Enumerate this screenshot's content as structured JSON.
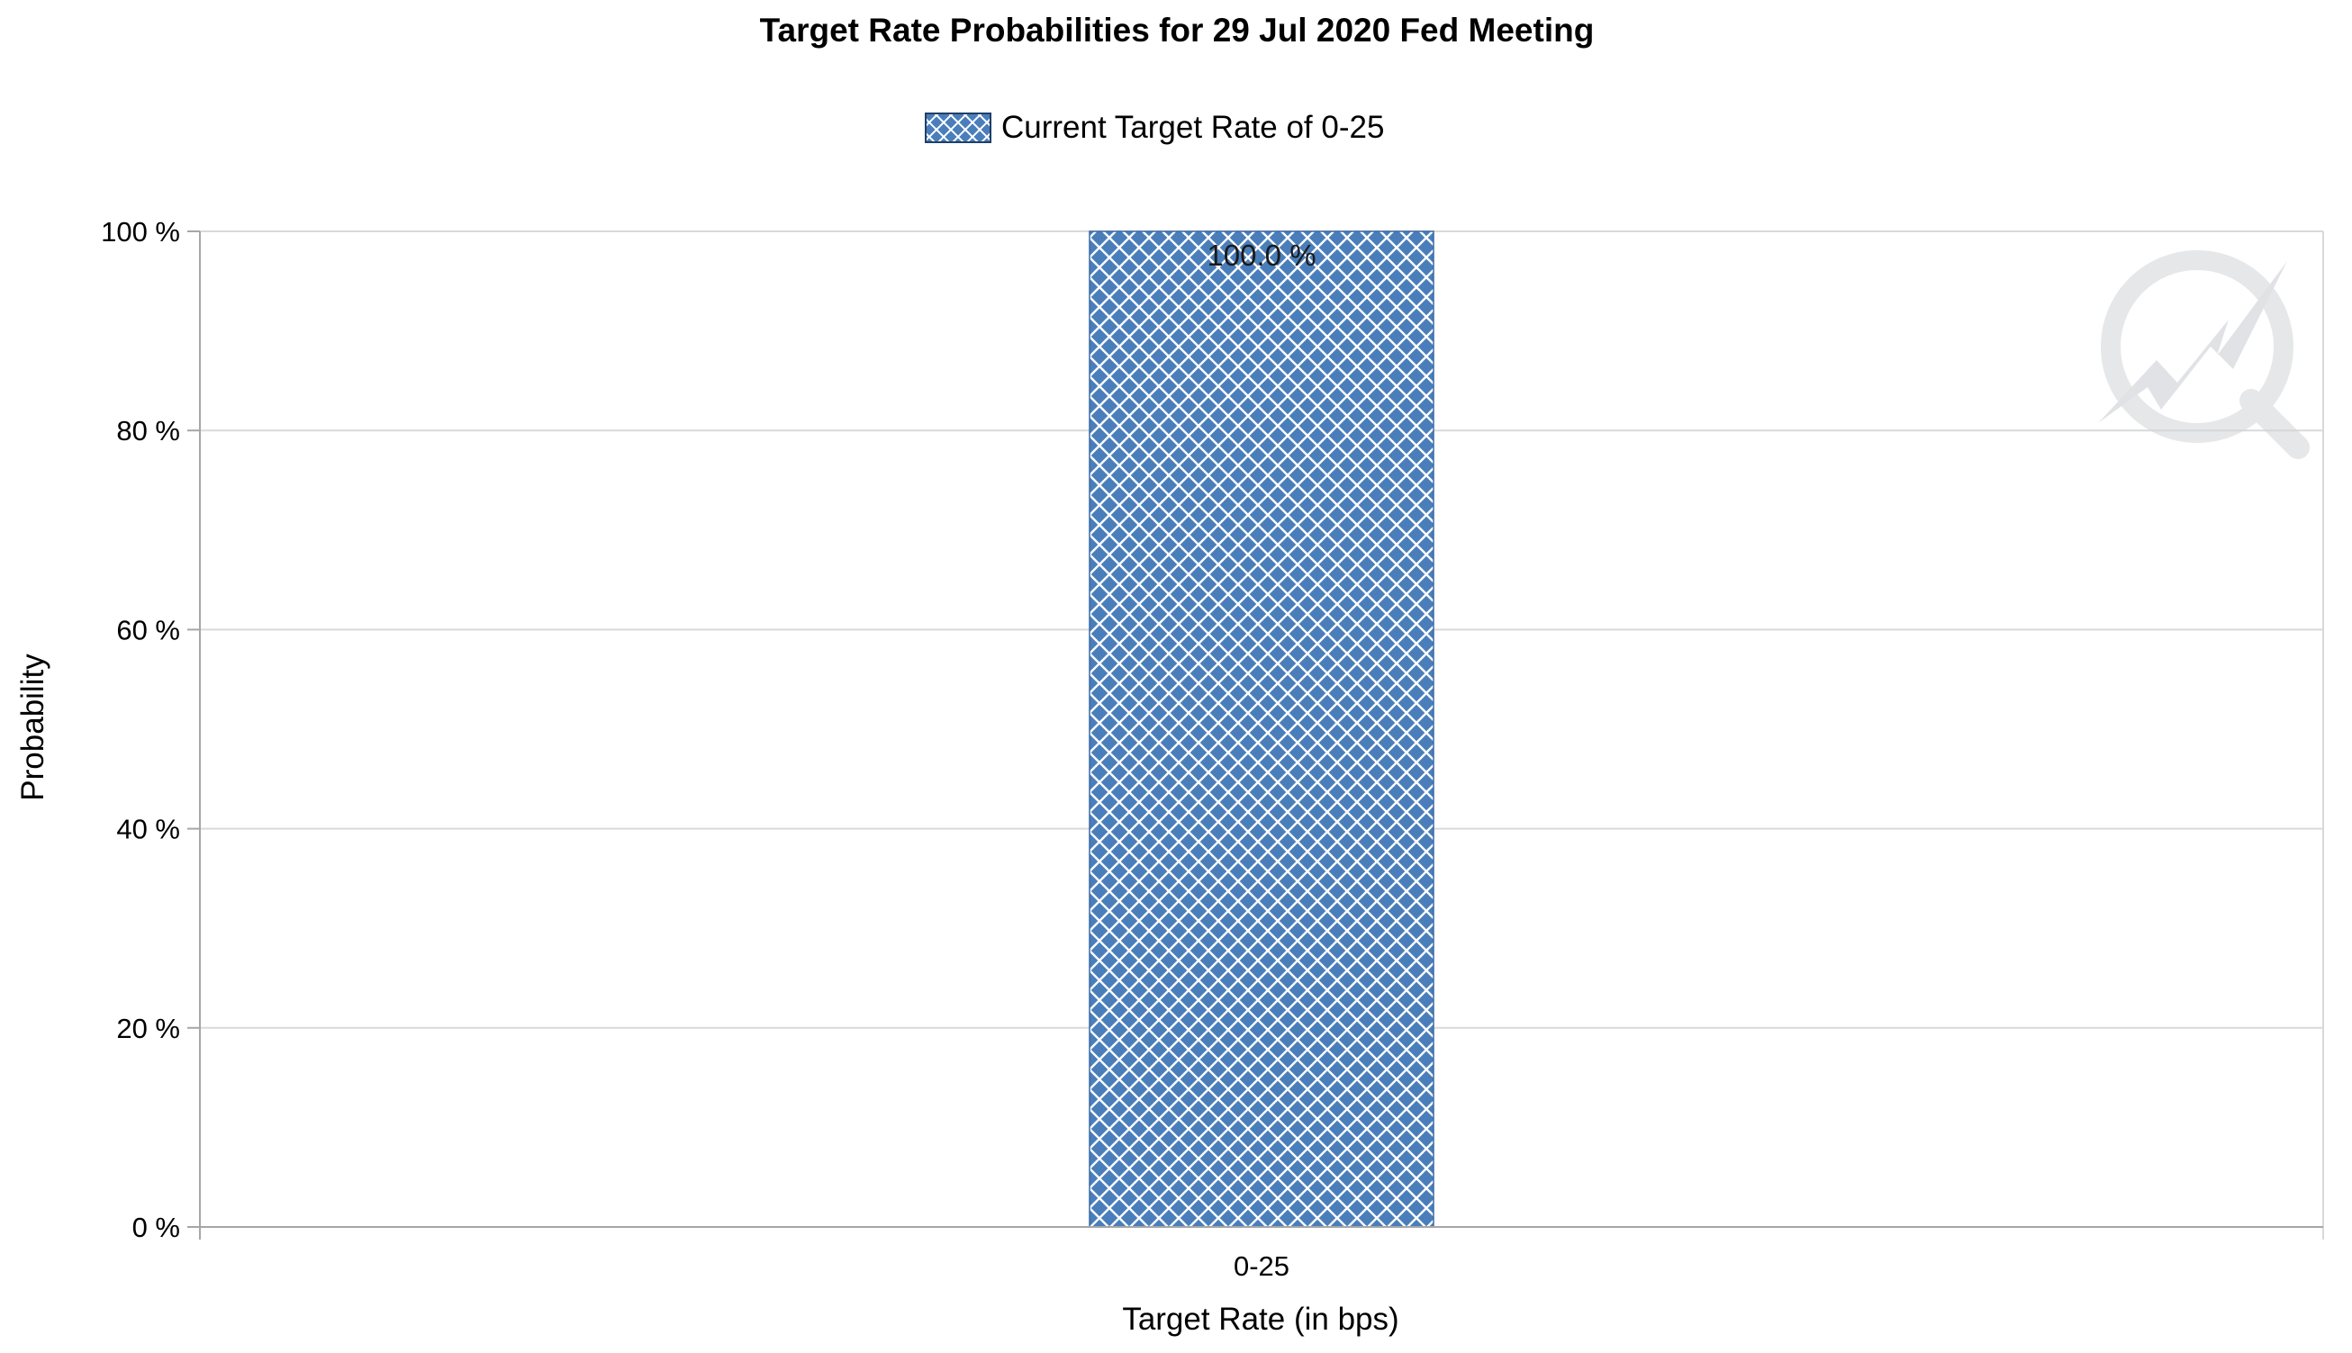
{
  "chart_data": {
    "type": "bar",
    "title": "Target Rate Probabilities for 29 Jul 2020 Fed Meeting",
    "xlabel": "Target Rate (in bps)",
    "ylabel": "Probability",
    "categories": [
      "0-25"
    ],
    "series": [
      {
        "name": "Current Target Rate of 0-25",
        "values": [
          100.0
        ],
        "data_labels": [
          "100.0 %"
        ],
        "color": "#4a7ebb",
        "pattern": "diagonal-crosshatch"
      }
    ],
    "ylim": [
      0,
      100
    ],
    "y_ticks": [
      0,
      20,
      40,
      60,
      80,
      100
    ],
    "y_tick_labels": [
      "0 %",
      "20 %",
      "40 %",
      "60 %",
      "80 %",
      "100 %"
    ],
    "grid": true,
    "legend_position": "top-center",
    "watermark": "cme-fedwatch-logo"
  },
  "colors": {
    "bar_fill": "#4a7ebb",
    "bar_hatch": "#ffffff",
    "grid": "#d9d9d9",
    "axis": "#a6a6a6",
    "text": "#000000",
    "watermark": "#d0d4d8"
  }
}
